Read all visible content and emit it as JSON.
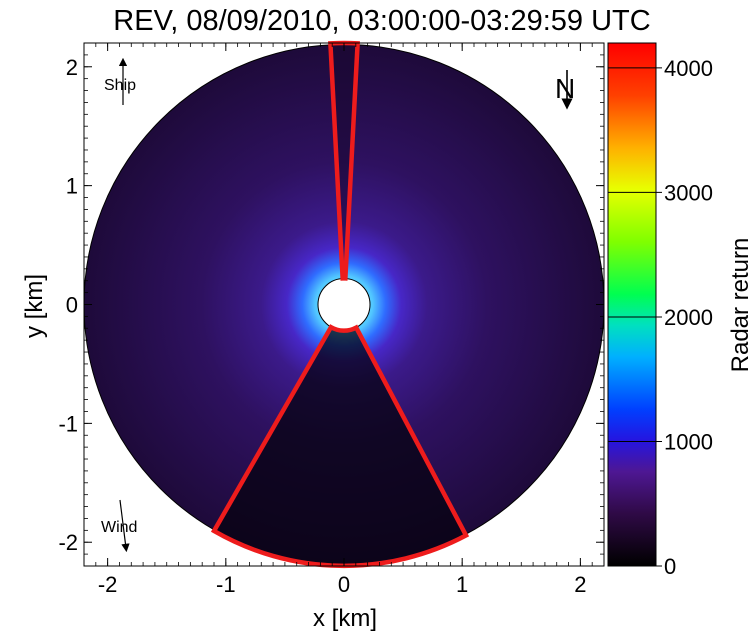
{
  "chart_data": {
    "type": "heatmap",
    "title": "REV, 08/09/2010, 03:00:00-03:29:59 UTC",
    "xlabel": "x [km]",
    "ylabel": "y [km]",
    "xlim": [
      -2.2,
      2.2
    ],
    "ylim": [
      -2.2,
      2.2
    ],
    "x_ticks": [
      -2,
      -1,
      0,
      1,
      2
    ],
    "y_ticks": [
      -2,
      -1,
      0,
      1,
      2
    ],
    "x_tick_labels": [
      "-2",
      "-1",
      "0",
      "1",
      "2"
    ],
    "y_tick_labels": [
      "-2",
      "-1",
      "0",
      "1",
      "2"
    ],
    "radar_range_km": 2.2,
    "blanked_center_radius_km": 0.22,
    "grid": false,
    "colorbar": {
      "label": "Radar return",
      "min": 0,
      "max": 4200,
      "ticks": [
        0,
        1000,
        2000,
        3000,
        4000
      ],
      "tick_labels": [
        "0",
        "1000",
        "2000",
        "3000",
        "4000"
      ],
      "colormap": "rainbow",
      "colors": [
        "#000000",
        "#3d0a52",
        "#5a1ba6",
        "#0030ff",
        "#00d0e0",
        "#00ff40",
        "#d8ff00",
        "#ffa000",
        "#ff0000"
      ]
    },
    "masked_sectors": [
      {
        "name": "north",
        "theta_min_deg": -3,
        "theta_max_deg": 3,
        "r_min_km": 0.22,
        "r_max_km": 2.2
      },
      {
        "name": "south",
        "theta_min_deg": 152,
        "theta_max_deg": 210,
        "r_min_km": 0.22,
        "r_max_km": 2.2
      }
    ],
    "sector_outline_color": "#ee1c1c",
    "indicators": {
      "ship": {
        "label": "Ship"
      },
      "wind": {
        "label": "Wind"
      },
      "north": {
        "label": "N"
      }
    }
  }
}
